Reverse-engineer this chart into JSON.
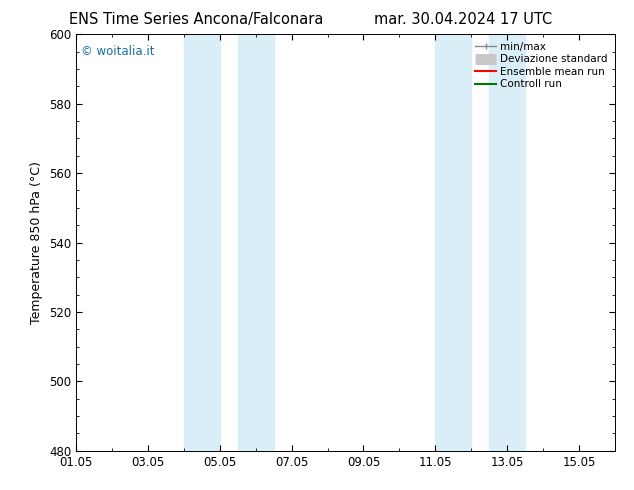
{
  "title_left": "ENS Time Series Ancona/Falconara",
  "title_right": "mar. 30.04.2024 17 UTC",
  "ylabel": "Temperature 850 hPa (°C)",
  "ylim": [
    480,
    600
  ],
  "yticks": [
    480,
    500,
    520,
    540,
    560,
    580,
    600
  ],
  "xtick_labels": [
    "01.05",
    "03.05",
    "05.05",
    "07.05",
    "09.05",
    "11.05",
    "13.05",
    "15.05"
  ],
  "xtick_positions": [
    0,
    2,
    4,
    6,
    8,
    10,
    12,
    14
  ],
  "xlim": [
    0,
    15
  ],
  "blue_bands": [
    {
      "start": 3.0,
      "end": 4.0
    },
    {
      "start": 4.5,
      "end": 5.5
    },
    {
      "start": 10.0,
      "end": 11.0
    },
    {
      "start": 11.5,
      "end": 12.5
    }
  ],
  "blue_band_color": "#daeef7",
  "background_color": "#ffffff",
  "plot_bg_color": "#ffffff",
  "watermark": "© woitalia.it",
  "watermark_color": "#1a6ea0",
  "title_fontsize": 10.5,
  "axis_label_fontsize": 9,
  "tick_fontsize": 8.5
}
